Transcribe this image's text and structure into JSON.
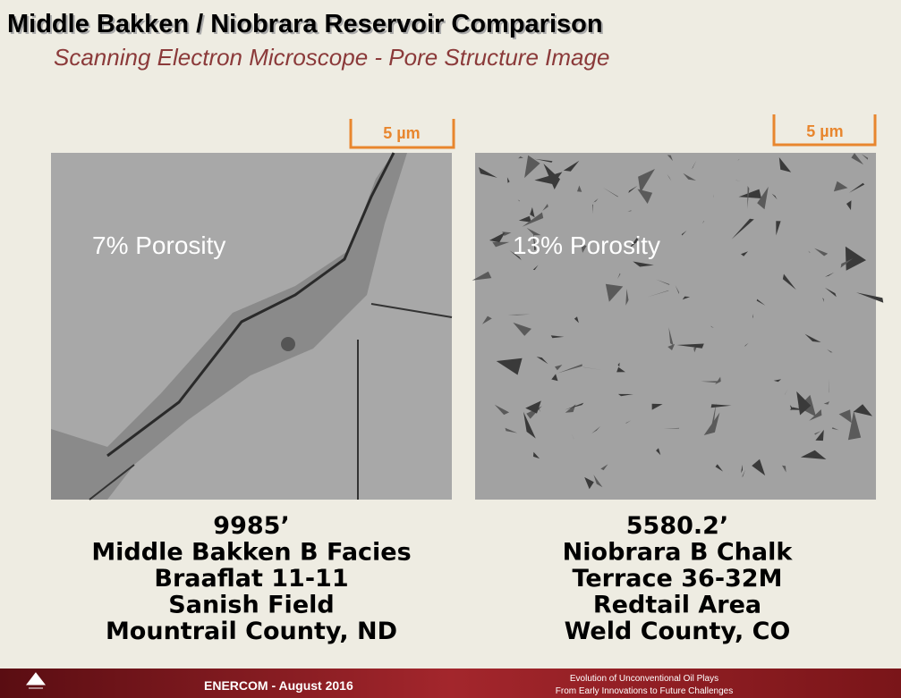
{
  "header": {
    "title": "Middle Bakken / Niobrara Reservoir Comparison",
    "subtitle": "Scanning Electron Microscope - Pore Structure Image"
  },
  "panels": [
    {
      "scale": "5 µm",
      "porosity": "7% Porosity",
      "caption": [
        "9985’",
        "Middle Bakken B Facies",
        "Braaflat 11-11",
        "Sanish Field",
        "Mountrail County, ND"
      ]
    },
    {
      "scale": "5 µm",
      "porosity": "13% Porosity",
      "caption": [
        "5580.2’",
        "Niobrara B Chalk",
        "Terrace 36-32M",
        "Redtail Area",
        "Weld County, CO"
      ]
    }
  ],
  "footer": {
    "left": "ENERCOM - August 2016",
    "right": [
      "Evolution of Unconventional Oil Plays",
      "From Early Innovations to Future Challenges"
    ]
  }
}
